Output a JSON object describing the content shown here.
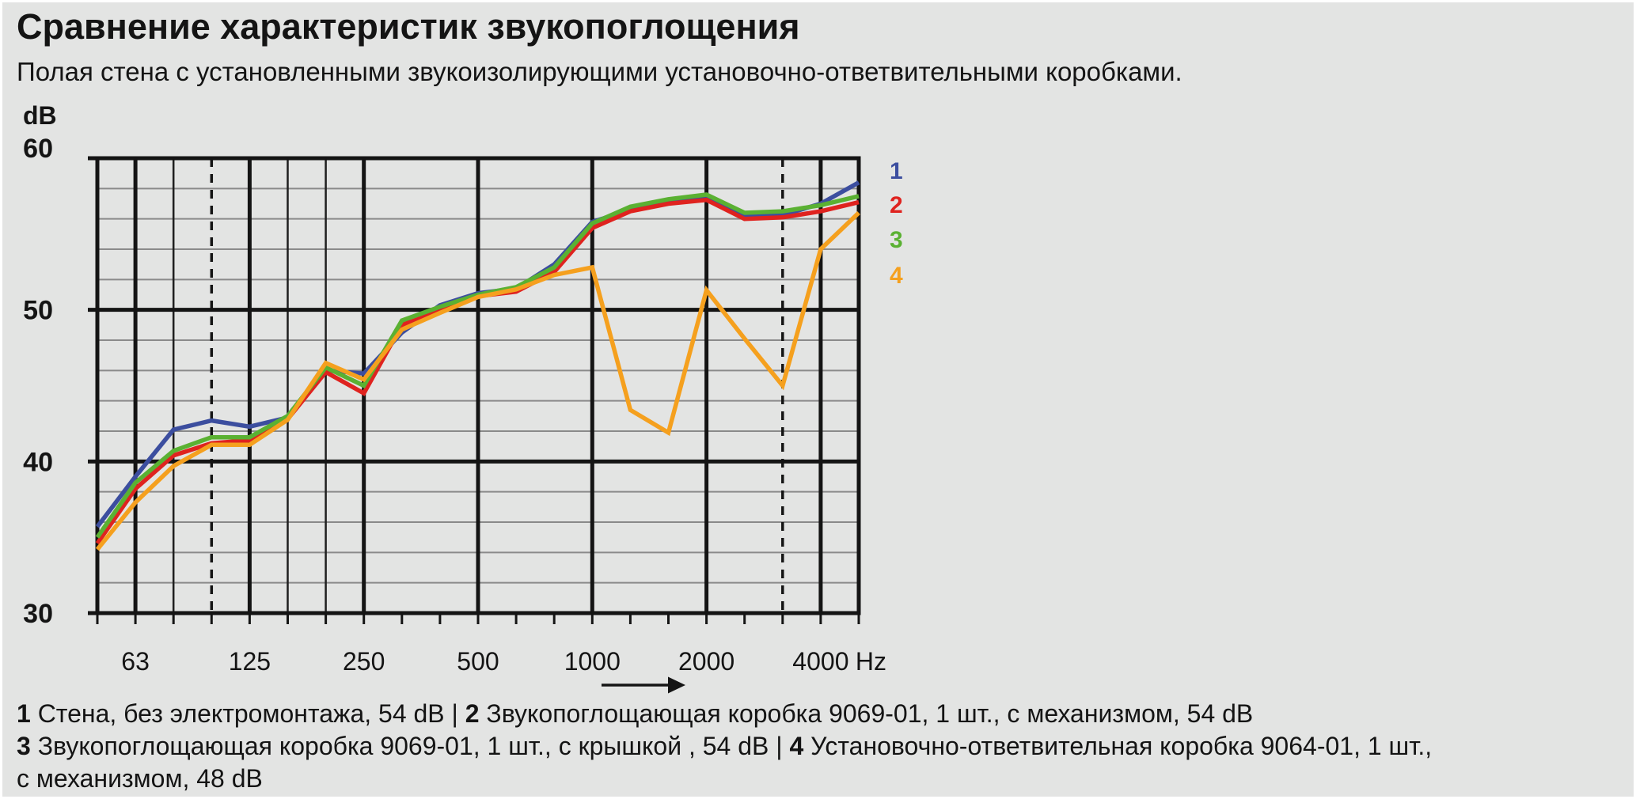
{
  "title": "Сравнение характеристик звукопоглощения",
  "subtitle": "Полая стена с установленными звукоизолирующими установочно-ответвительными коробками.",
  "y_axis_unit": "dB",
  "x_axis_unit": "Hz",
  "colors": {
    "background": "#e3e4e3",
    "grid_major": "#141414",
    "grid_minor_h": "#8a8a8a",
    "grid_minor_v": "#1f1f1f",
    "grid_dashed": "#141414",
    "text": "#141414",
    "series1_blue": "#3c4e9f",
    "series2_red": "#df231f",
    "series3_green": "#5ab132",
    "series4_orange": "#f5a01e"
  },
  "chart_data": {
    "type": "line",
    "x_scale": "log-third-octave",
    "x": [
      50,
      63,
      80,
      100,
      125,
      160,
      200,
      250,
      315,
      400,
      500,
      630,
      800,
      1000,
      1250,
      1600,
      2000,
      2500,
      3150,
      4000,
      5000
    ],
    "x_gridlines": [
      {
        "f": "50",
        "style": "major",
        "label": ""
      },
      {
        "f": "63",
        "style": "major",
        "label": "63"
      },
      {
        "f": "80",
        "style": "minor",
        "label": ""
      },
      {
        "f": "100",
        "style": "dashed",
        "label": ""
      },
      {
        "f": "125",
        "style": "major",
        "label": "125"
      },
      {
        "f": "160",
        "style": "minor",
        "label": ""
      },
      {
        "f": "200",
        "style": "minor",
        "label": ""
      },
      {
        "f": "250",
        "style": "major",
        "label": "250"
      },
      {
        "f": "315",
        "style": "none",
        "label": ""
      },
      {
        "f": "400",
        "style": "none",
        "label": ""
      },
      {
        "f": "500",
        "style": "major",
        "label": "500"
      },
      {
        "f": "630",
        "style": "none",
        "label": ""
      },
      {
        "f": "800",
        "style": "none",
        "label": ""
      },
      {
        "f": "1000",
        "style": "major",
        "label": "1000"
      },
      {
        "f": "1250",
        "style": "none",
        "label": ""
      },
      {
        "f": "1600",
        "style": "none",
        "label": ""
      },
      {
        "f": "2000",
        "style": "major",
        "label": "2000"
      },
      {
        "f": "2500",
        "style": "none",
        "label": ""
      },
      {
        "f": "3150",
        "style": "dashed",
        "label": ""
      },
      {
        "f": "4000",
        "style": "major",
        "label": "4000"
      },
      {
        "f": "5000",
        "style": "major",
        "label": ""
      }
    ],
    "ylim": [
      30,
      60
    ],
    "y_major_ticks": [
      60,
      50,
      40,
      30
    ],
    "y_minor_step": 2,
    "ylabel": "dB",
    "xlabel": "Hz",
    "legend_position": "right",
    "series": [
      {
        "num": "1",
        "name": "Стена, без электромонтажа",
        "rating": "54 dB",
        "color": "#3c4e9f",
        "values": [
          35.7,
          39.0,
          42.1,
          42.7,
          42.3,
          42.9,
          46.0,
          45.8,
          48.5,
          50.3,
          51.1,
          51.4,
          53.0,
          55.8,
          56.6,
          57.1,
          57.45,
          56.15,
          56.25,
          57.0,
          58.4
        ]
      },
      {
        "num": "2",
        "name": "Звукопоглощающая коробка 9069-01, 1 шт., с механизмом",
        "rating": "54 dB",
        "color": "#df231f",
        "values": [
          34.6,
          38.2,
          40.4,
          41.2,
          41.4,
          42.8,
          45.9,
          44.5,
          49.0,
          49.9,
          50.9,
          51.2,
          52.5,
          55.4,
          56.5,
          57.0,
          57.25,
          56.0,
          56.1,
          56.5,
          57.1
        ]
      },
      {
        "num": "3",
        "name": "Звукопоглощающая коробка 9069-01, 1 шт., с крышкой",
        "rating": "54 dB",
        "color": "#5ab132",
        "values": [
          35.0,
          38.6,
          40.7,
          41.6,
          41.6,
          43.0,
          46.2,
          45.0,
          49.3,
          50.2,
          51.0,
          51.5,
          52.8,
          55.7,
          56.8,
          57.3,
          57.6,
          56.4,
          56.5,
          56.9,
          57.5
        ]
      },
      {
        "num": "4",
        "name": "Установочно-ответвительная коробка 9064-01, 1 шт., с механизмом",
        "rating": "48 dB",
        "color": "#f5a01e",
        "values": [
          34.2,
          37.3,
          39.7,
          41.1,
          41.1,
          42.75,
          46.5,
          45.4,
          48.7,
          49.8,
          50.85,
          51.35,
          52.3,
          52.8,
          43.4,
          41.9,
          51.3,
          48.1,
          45.0,
          54.0,
          56.4
        ]
      }
    ]
  },
  "caption": {
    "lines": [
      [
        {
          "b": true,
          "t": "1"
        },
        {
          "b": false,
          "t": " Стена, без электромонтажа, 54 dB | "
        },
        {
          "b": true,
          "t": "2"
        },
        {
          "b": false,
          "t": " Звукопоглощающая коробка 9069-01, 1 шт., с механизмом, 54 dB"
        }
      ],
      [
        {
          "b": true,
          "t": "3"
        },
        {
          "b": false,
          "t": " Звукопоглощающая коробка 9069-01, 1 шт., с крышкой , 54 dB | "
        },
        {
          "b": true,
          "t": "4"
        },
        {
          "b": false,
          "t": " Установочно-ответвительная коробка 9064-01, 1 шт.,"
        }
      ],
      [
        {
          "b": false,
          "t": "с механизмом, 48 dB"
        }
      ]
    ]
  }
}
